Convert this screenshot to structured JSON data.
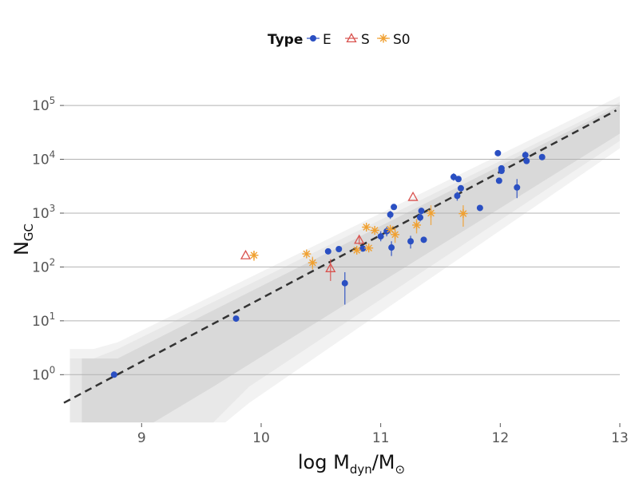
{
  "chart_data": {
    "type": "scatter",
    "legend": {
      "title": "Type",
      "position": "top",
      "entries": [
        {
          "label": "E",
          "color": "#2a4fc2",
          "marker": "circle"
        },
        {
          "label": "S",
          "color": "#d9534f",
          "marker": "triangle"
        },
        {
          "label": "S0",
          "color": "#f0a030",
          "marker": "star"
        }
      ]
    },
    "xlabel": {
      "main": "log M",
      "sub": "dyn",
      "sep": "/M",
      "sub2": "⊙"
    },
    "ylabel": {
      "main": "N",
      "sub": "GC"
    },
    "xlim": [
      8.35,
      13.0
    ],
    "ylim_log10": [
      -0.9,
      5.55
    ],
    "yscale": "log",
    "grid": "horizontal",
    "x_ticks": [
      {
        "value": 9,
        "label": "9"
      },
      {
        "value": 10,
        "label": "10"
      },
      {
        "value": 11,
        "label": "11"
      },
      {
        "value": 12,
        "label": "12"
      },
      {
        "value": 13,
        "label": "13"
      }
    ],
    "y_ticks": [
      {
        "log": 0,
        "base": "10",
        "exp": "0"
      },
      {
        "log": 1,
        "base": "10",
        "exp": "1"
      },
      {
        "log": 2,
        "base": "10",
        "exp": "2"
      },
      {
        "log": 3,
        "base": "10",
        "exp": "3"
      },
      {
        "log": 4,
        "base": "10",
        "exp": "4"
      },
      {
        "log": 5,
        "base": "10",
        "exp": "5"
      }
    ],
    "fit_line": {
      "x": [
        8.35,
        12.97
      ],
      "y": [
        0.3,
        81000
      ],
      "style": "dashed",
      "color": "#333333"
    },
    "bands": [
      {
        "level": "outer",
        "color": "#f2f2f2",
        "upper": [
          [
            8.4,
            3.0
          ],
          [
            8.6,
            3.0
          ],
          [
            8.8,
            4.0
          ],
          [
            13.0,
            150000
          ]
        ],
        "lower": [
          [
            13.0,
            16000
          ],
          [
            9.9,
            0.3
          ],
          [
            9.7,
            0.13
          ],
          [
            8.4,
            0.13
          ]
        ]
      },
      {
        "level": "middle",
        "color": "#e8e8e8",
        "upper": [
          [
            8.4,
            2.0
          ],
          [
            8.6,
            2.0
          ],
          [
            8.8,
            3.0
          ],
          [
            13.0,
            115000
          ]
        ],
        "lower": [
          [
            13.0,
            22000
          ],
          [
            9.9,
            0.6
          ],
          [
            9.6,
            0.13
          ],
          [
            8.4,
            0.13
          ]
        ]
      },
      {
        "level": "inner",
        "color": "#d9d9d9",
        "upper": [
          [
            8.5,
            2.0
          ],
          [
            8.8,
            2.0
          ],
          [
            13.0,
            100000
          ]
        ],
        "lower": [
          [
            13.0,
            30000
          ],
          [
            9.6,
            0.6
          ],
          [
            9.1,
            0.13
          ],
          [
            8.5,
            0.13
          ]
        ]
      }
    ],
    "series": [
      {
        "name": "E",
        "color": "#2a4fc2",
        "marker": "circle",
        "points": [
          {
            "x": 8.77,
            "y": 1.0
          },
          {
            "x": 9.79,
            "y": 11
          },
          {
            "x": 10.56,
            "y": 195
          },
          {
            "x": 10.65,
            "y": 215
          },
          {
            "x": 10.7,
            "y": 50,
            "err_lo": 20,
            "err_hi": 80
          },
          {
            "x": 10.85,
            "y": 220
          },
          {
            "x": 11.0,
            "y": 370,
            "err_lo": 300,
            "err_hi": 460
          },
          {
            "x": 11.05,
            "y": 460,
            "err_lo": 370,
            "err_hi": 560
          },
          {
            "x": 11.08,
            "y": 940,
            "err_lo": 780,
            "err_hi": 1100
          },
          {
            "x": 11.09,
            "y": 230,
            "err_lo": 160,
            "err_hi": 300
          },
          {
            "x": 11.11,
            "y": 1300,
            "err_lo": 1150,
            "err_hi": 1450
          },
          {
            "x": 11.25,
            "y": 300,
            "err_lo": 220,
            "err_hi": 380
          },
          {
            "x": 11.33,
            "y": 830,
            "err_lo": 700,
            "err_hi": 970
          },
          {
            "x": 11.34,
            "y": 1100,
            "err_lo": 950,
            "err_hi": 1250
          },
          {
            "x": 11.36,
            "y": 320
          },
          {
            "x": 11.61,
            "y": 4700,
            "err_lo": 4000,
            "err_hi": 5500
          },
          {
            "x": 11.64,
            "y": 2100,
            "err_lo": 1700,
            "err_hi": 2500
          },
          {
            "x": 11.65,
            "y": 4300
          },
          {
            "x": 11.67,
            "y": 2900
          },
          {
            "x": 11.83,
            "y": 1250
          },
          {
            "x": 11.98,
            "y": 13000
          },
          {
            "x": 11.99,
            "y": 4000
          },
          {
            "x": 12.01,
            "y": 6800
          },
          {
            "x": 12.01,
            "y": 6100
          },
          {
            "x": 12.14,
            "y": 3000,
            "err_lo": 1900,
            "err_hi": 4300
          },
          {
            "x": 12.21,
            "y": 12000,
            "err_lo": 10000,
            "err_hi": 14000
          },
          {
            "x": 12.22,
            "y": 9300
          },
          {
            "x": 12.35,
            "y": 11000
          }
        ]
      },
      {
        "name": "S",
        "color": "#d9534f",
        "marker": "triangle",
        "points": [
          {
            "x": 9.87,
            "y": 165
          },
          {
            "x": 10.58,
            "y": 95,
            "err_lo": 55,
            "err_hi": 140
          },
          {
            "x": 10.82,
            "y": 320,
            "err_lo": 260,
            "err_hi": 380
          },
          {
            "x": 11.27,
            "y": 2000
          }
        ]
      },
      {
        "name": "S0",
        "color": "#f0a030",
        "marker": "star",
        "points": [
          {
            "x": 9.94,
            "y": 165,
            "err_lo": 130,
            "err_hi": 200
          },
          {
            "x": 10.38,
            "y": 175
          },
          {
            "x": 10.43,
            "y": 120,
            "err_lo": 90,
            "err_hi": 155
          },
          {
            "x": 10.8,
            "y": 205
          },
          {
            "x": 10.88,
            "y": 550
          },
          {
            "x": 10.9,
            "y": 225
          },
          {
            "x": 10.95,
            "y": 480
          },
          {
            "x": 11.08,
            "y": 500
          },
          {
            "x": 11.12,
            "y": 400,
            "err_lo": 280,
            "err_hi": 540
          },
          {
            "x": 11.3,
            "y": 600,
            "err_lo": 420,
            "err_hi": 780
          },
          {
            "x": 11.42,
            "y": 1000,
            "err_lo": 600,
            "err_hi": 1400
          },
          {
            "x": 11.69,
            "y": 980,
            "err_lo": 560,
            "err_hi": 1400
          }
        ]
      }
    ]
  }
}
